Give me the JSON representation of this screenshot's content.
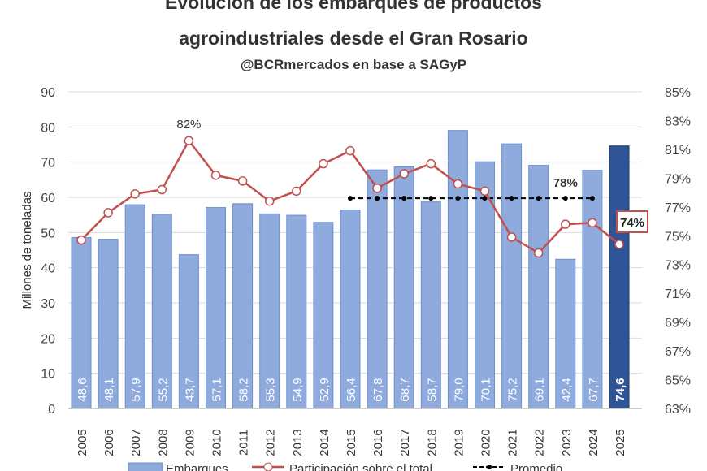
{
  "chart_data": {
    "type": "bar+line",
    "title": "Evolución de los embarques de productos agroindustriales desde el Gran Rosario",
    "subtitle": "@BCRmercados en base a SAGyP",
    "ylabel": "Millones de toneladas",
    "ylim": [
      0,
      90
    ],
    "yticks": [
      "0",
      "10",
      "20",
      "30",
      "40",
      "50",
      "60",
      "70",
      "80",
      "90"
    ],
    "y2lim": [
      63,
      85
    ],
    "y2ticks": [
      "63%",
      "65%",
      "67%",
      "69%",
      "71%",
      "73%",
      "75%",
      "77%",
      "79%",
      "81%",
      "83%",
      "85%"
    ],
    "grid": true,
    "legend_position": "bottom",
    "categories": [
      "2005",
      "2006",
      "2007",
      "2008",
      "2009",
      "2010",
      "2011",
      "2012",
      "2013",
      "2014",
      "2015",
      "2016",
      "2017",
      "2018",
      "2019",
      "2020",
      "2021",
      "2022",
      "2023",
      "2024",
      "2025"
    ],
    "series": [
      {
        "name": "Embarques",
        "type": "bar",
        "axis": "left",
        "color": "#8faadc",
        "highlight_color": "#2f5597",
        "values": [
          48.6,
          48.1,
          57.9,
          55.2,
          43.7,
          57.1,
          58.2,
          55.3,
          54.9,
          52.9,
          56.4,
          67.8,
          68.7,
          58.7,
          79.0,
          70.1,
          75.2,
          69.1,
          42.4,
          67.7,
          74.6
        ],
        "labels": [
          "48,6",
          "48,1",
          "57,9",
          "55,2",
          "43,7",
          "57,1",
          "58,2",
          "55,3",
          "54,9",
          "52,9",
          "56,4",
          "67,8",
          "68,7",
          "58,7",
          "79,0",
          "70,1",
          "75,2",
          "69,1",
          "42,4",
          "67,7",
          "74,6"
        ]
      },
      {
        "name": "Participación sobre el total",
        "type": "line",
        "axis": "right",
        "color": "#c0504d",
        "values": [
          74.7,
          76.6,
          77.9,
          78.2,
          81.6,
          79.2,
          78.8,
          77.4,
          78.1,
          80.0,
          80.9,
          78.3,
          79.3,
          80.0,
          78.6,
          78.1,
          74.9,
          73.8,
          75.8,
          75.9,
          74.4
        ]
      },
      {
        "name": "Promedio",
        "type": "line",
        "axis": "right",
        "color": "#000000",
        "dashed": true,
        "range": [
          "2015",
          "2024"
        ],
        "value": 77.6
      }
    ],
    "annotations": [
      {
        "text": "82%",
        "category": "2009"
      },
      {
        "text": "78%",
        "category": "2023"
      },
      {
        "text": "74%",
        "category": "2025",
        "boxed": true
      }
    ]
  }
}
